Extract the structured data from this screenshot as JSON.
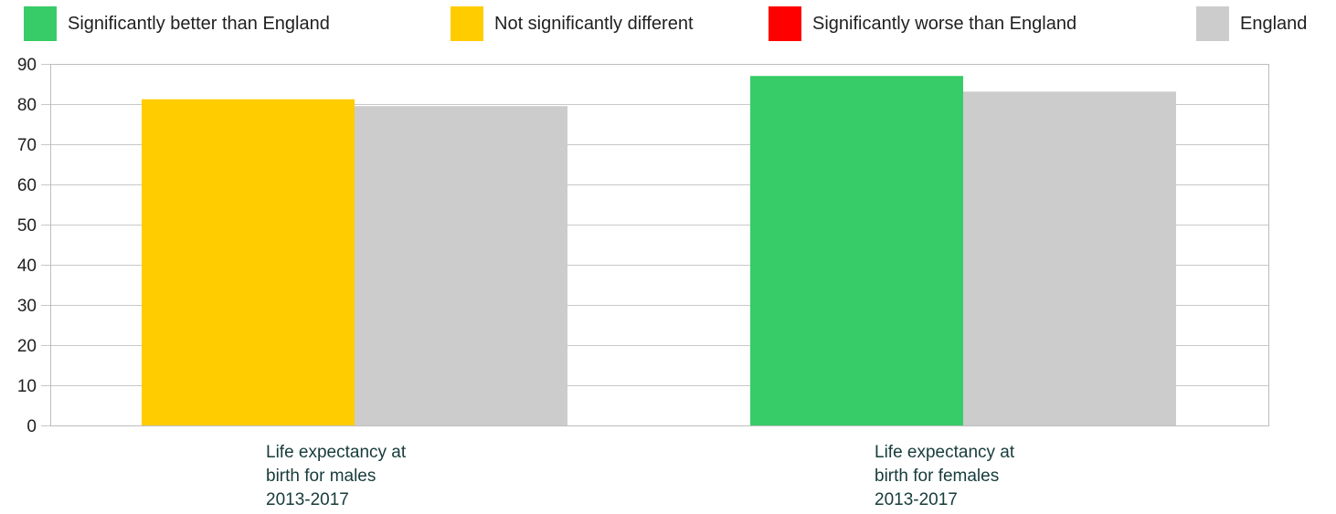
{
  "legend": [
    {
      "label": "Significantly better than England",
      "color": "#37cc67"
    },
    {
      "label": "Not significantly different",
      "color": "#ffcc00"
    },
    {
      "label": "Significantly worse than England",
      "color": "#ff0000"
    },
    {
      "label": "England",
      "color": "#cccccc"
    }
  ],
  "chart_data": {
    "type": "bar",
    "title": "",
    "xlabel": "",
    "ylabel": "",
    "ylim": [
      0,
      90
    ],
    "yticks": [
      0,
      10,
      20,
      30,
      40,
      50,
      60,
      70,
      80,
      90
    ],
    "grid": true,
    "legend_position": "top",
    "categories": [
      [
        "Life expectancy at",
        "birth for males",
        "2013-2017"
      ],
      [
        "Life expectancy at",
        "birth for females",
        "2013-2017"
      ]
    ],
    "series": [
      {
        "values": [
          81.2,
          87.0
        ],
        "colors": [
          "#ffcc00",
          "#37cc67"
        ]
      },
      {
        "name": "England",
        "values": [
          79.5,
          83.1
        ],
        "colors": [
          "#cccccc",
          "#cccccc"
        ]
      }
    ]
  }
}
